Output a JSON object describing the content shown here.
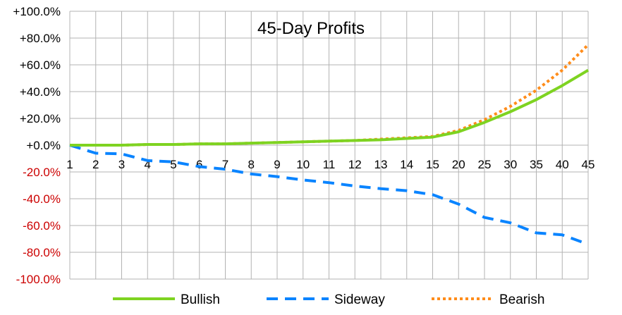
{
  "chart_data": {
    "type": "line",
    "title": "45-Day Profits",
    "xlabel": "",
    "ylabel": "",
    "categories": [
      "1",
      "2",
      "3",
      "4",
      "5",
      "6",
      "7",
      "8",
      "9",
      "10",
      "11",
      "12",
      "13",
      "14",
      "15",
      "20",
      "25",
      "30",
      "35",
      "40",
      "45"
    ],
    "ylim": [
      -100,
      100
    ],
    "yticks": [
      100,
      80,
      60,
      40,
      20,
      0,
      -20,
      -40,
      -60,
      -80,
      -100
    ],
    "ytick_labels": [
      "+100.0%",
      "+80.0%",
      "+60.0%",
      "+40.0%",
      "+20.0%",
      "+0.0%",
      "-20.0%",
      "-40.0%",
      "-60.0%",
      "-80.0%",
      "-100.0%"
    ],
    "ytick_colors": {
      "positive": "#000000",
      "negative": "#cc0000"
    },
    "grid": true,
    "legend_position": "bottom",
    "series": [
      {
        "name": "Bullish",
        "color": "#7ed321",
        "style": "solid",
        "values": [
          0,
          0,
          0,
          0.5,
          0.5,
          1,
          1,
          1.5,
          2,
          2.5,
          3,
          3.5,
          4,
          5,
          6,
          10,
          17,
          25,
          34,
          44.5,
          56
        ]
      },
      {
        "name": "Sideway",
        "color": "#0a84ff",
        "style": "dashed",
        "values": [
          0,
          -6,
          -6.5,
          -11.5,
          -12.5,
          -16,
          -18,
          -21.5,
          -23.5,
          -26,
          -28,
          -30.5,
          -32.5,
          -34,
          -37,
          -44,
          -54,
          -58,
          -65.5,
          -67,
          -74
        ]
      },
      {
        "name": "Bearish",
        "color": "#ff8c1a",
        "style": "dotted",
        "values": [
          0,
          0,
          0,
          0.5,
          0.5,
          1,
          1,
          1.5,
          2,
          2.5,
          3,
          3.5,
          4.5,
          5.5,
          6.5,
          11,
          19,
          29,
          41,
          56,
          75
        ]
      }
    ]
  }
}
